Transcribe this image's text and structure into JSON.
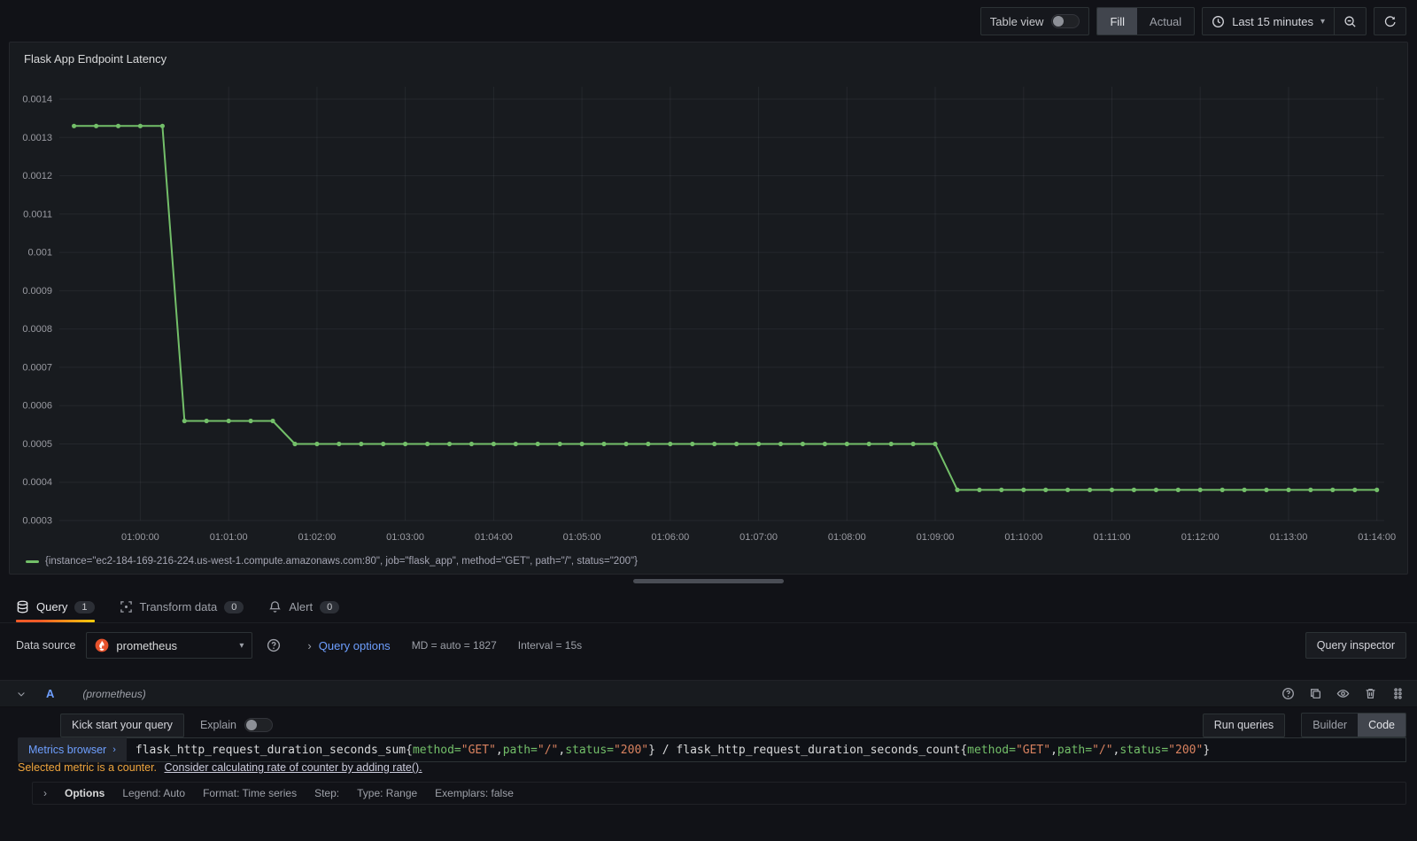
{
  "toolbar": {
    "table_view_label": "Table view",
    "fill_label": "Fill",
    "actual_label": "Actual",
    "time_range_label": "Last 15 minutes"
  },
  "panel": {
    "title": "Flask App Endpoint Latency",
    "legend": "{instance=\"ec2-184-169-216-224.us-west-1.compute.amazonaws.com:80\", job=\"flask_app\", method=\"GET\", path=\"/\", status=\"200\"}"
  },
  "chart_data": {
    "type": "line",
    "title": "Flask App Endpoint Latency",
    "series_color": "#73bf69",
    "grid": true,
    "legend_position": "bottom",
    "ylim": [
      0.0003,
      0.0014
    ],
    "y_ticks": [
      "0.0014",
      "0.0013",
      "0.0012",
      "0.0011",
      "0.001",
      "0.0009",
      "0.0008",
      "0.0007",
      "0.0006",
      "0.0005",
      "0.0004",
      "0.0003"
    ],
    "x_ticks": [
      "01:00:00",
      "01:01:00",
      "01:02:00",
      "01:03:00",
      "01:04:00",
      "01:05:00",
      "01:06:00",
      "01:07:00",
      "01:08:00",
      "01:09:00",
      "01:10:00",
      "01:11:00",
      "01:12:00",
      "01:13:00",
      "01:14:00"
    ],
    "x_domain": [
      "00:59:05",
      "01:14:05"
    ],
    "series": [
      {
        "name": "{instance=\"ec2-184-169-216-224.us-west-1.compute.amazonaws.com:80\", job=\"flask_app\", method=\"GET\", path=\"/\", status=\"200\"}",
        "points": [
          [
            "00:59:15",
            0.00133
          ],
          [
            "00:59:30",
            0.00133
          ],
          [
            "00:59:45",
            0.00133
          ],
          [
            "01:00:00",
            0.00133
          ],
          [
            "01:00:15",
            0.00133
          ],
          [
            "01:00:30",
            0.00056
          ],
          [
            "01:00:45",
            0.00056
          ],
          [
            "01:01:00",
            0.00056
          ],
          [
            "01:01:15",
            0.00056
          ],
          [
            "01:01:30",
            0.00056
          ],
          [
            "01:01:45",
            0.0005
          ],
          [
            "01:02:00",
            0.0005
          ],
          [
            "01:02:15",
            0.0005
          ],
          [
            "01:02:30",
            0.0005
          ],
          [
            "01:02:45",
            0.0005
          ],
          [
            "01:03:00",
            0.0005
          ],
          [
            "01:03:15",
            0.0005
          ],
          [
            "01:03:30",
            0.0005
          ],
          [
            "01:03:45",
            0.0005
          ],
          [
            "01:04:00",
            0.0005
          ],
          [
            "01:04:15",
            0.0005
          ],
          [
            "01:04:30",
            0.0005
          ],
          [
            "01:04:45",
            0.0005
          ],
          [
            "01:05:00",
            0.0005
          ],
          [
            "01:05:15",
            0.0005
          ],
          [
            "01:05:30",
            0.0005
          ],
          [
            "01:05:45",
            0.0005
          ],
          [
            "01:06:00",
            0.0005
          ],
          [
            "01:06:15",
            0.0005
          ],
          [
            "01:06:30",
            0.0005
          ],
          [
            "01:06:45",
            0.0005
          ],
          [
            "01:07:00",
            0.0005
          ],
          [
            "01:07:15",
            0.0005
          ],
          [
            "01:07:30",
            0.0005
          ],
          [
            "01:07:45",
            0.0005
          ],
          [
            "01:08:00",
            0.0005
          ],
          [
            "01:08:15",
            0.0005
          ],
          [
            "01:08:30",
            0.0005
          ],
          [
            "01:08:45",
            0.0005
          ],
          [
            "01:09:00",
            0.0005
          ],
          [
            "01:09:15",
            0.00038
          ],
          [
            "01:09:30",
            0.00038
          ],
          [
            "01:09:45",
            0.00038
          ],
          [
            "01:10:00",
            0.00038
          ],
          [
            "01:10:15",
            0.00038
          ],
          [
            "01:10:30",
            0.00038
          ],
          [
            "01:10:45",
            0.00038
          ],
          [
            "01:11:00",
            0.00038
          ],
          [
            "01:11:15",
            0.00038
          ],
          [
            "01:11:30",
            0.00038
          ],
          [
            "01:11:45",
            0.00038
          ],
          [
            "01:12:00",
            0.00038
          ],
          [
            "01:12:15",
            0.00038
          ],
          [
            "01:12:30",
            0.00038
          ],
          [
            "01:12:45",
            0.00038
          ],
          [
            "01:13:00",
            0.00038
          ],
          [
            "01:13:15",
            0.00038
          ],
          [
            "01:13:30",
            0.00038
          ],
          [
            "01:13:45",
            0.00038
          ],
          [
            "01:14:00",
            0.00038
          ]
        ]
      }
    ]
  },
  "tabs": [
    {
      "label": "Query",
      "count": "1"
    },
    {
      "label": "Transform data",
      "count": "0"
    },
    {
      "label": "Alert",
      "count": "0"
    }
  ],
  "query_config": {
    "datasource_label": "Data source",
    "datasource_value": "prometheus",
    "query_options_label": "Query options",
    "md_text": "MD = auto = 1827",
    "interval_text": "Interval = 15s",
    "inspector_label": "Query inspector"
  },
  "query_row": {
    "ref_id": "A",
    "datasource_hint": "(prometheus)",
    "kick_start_label": "Kick start your query",
    "explain_label": "Explain",
    "run_queries_label": "Run queries",
    "builder_label": "Builder",
    "code_label": "Code",
    "metrics_browser_label": "Metrics browser",
    "expr_segments": [
      {
        "c": "plain",
        "t": "flask_http_request_duration_seconds_sum{"
      },
      {
        "c": "key",
        "t": "method="
      },
      {
        "c": "str",
        "t": "\"GET\""
      },
      {
        "c": "plain",
        "t": ","
      },
      {
        "c": "key",
        "t": "path="
      },
      {
        "c": "str",
        "t": "\"/\""
      },
      {
        "c": "plain",
        "t": ","
      },
      {
        "c": "key",
        "t": "status="
      },
      {
        "c": "str",
        "t": "\"200\""
      },
      {
        "c": "plain",
        "t": "} / flask_http_request_duration_seconds_count{"
      },
      {
        "c": "key",
        "t": "method="
      },
      {
        "c": "str",
        "t": "\"GET\""
      },
      {
        "c": "plain",
        "t": ","
      },
      {
        "c": "key",
        "t": "path="
      },
      {
        "c": "str",
        "t": "\"/\""
      },
      {
        "c": "plain",
        "t": ","
      },
      {
        "c": "key",
        "t": "status="
      },
      {
        "c": "str",
        "t": "\"200\""
      },
      {
        "c": "plain",
        "t": "}"
      }
    ],
    "warning_text": "Selected metric is a counter.",
    "warning_link": "Consider calculating rate of counter by adding rate().",
    "options_label": "Options",
    "options_summary": [
      "Legend: Auto",
      "Format: Time series",
      "Step:",
      "Type: Range",
      "Exemplars: false"
    ]
  }
}
